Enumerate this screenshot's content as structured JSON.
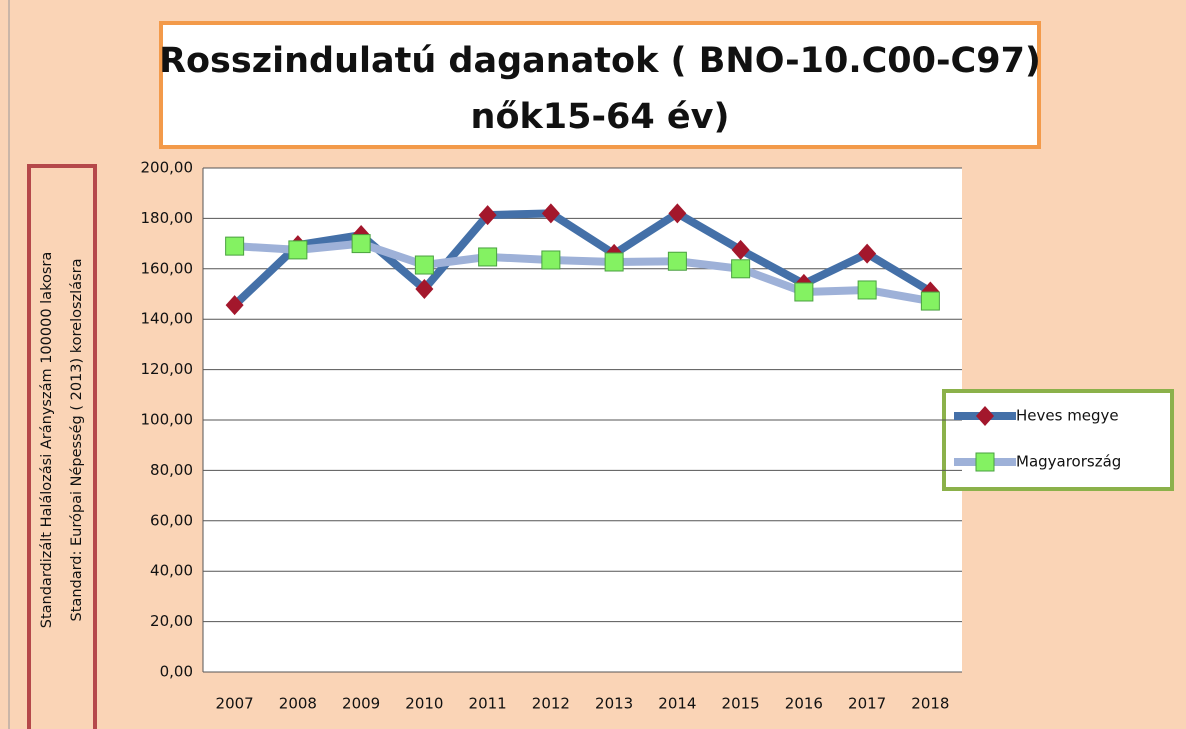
{
  "chart_data": {
    "type": "line",
    "title": [
      "Rosszindulatú daganatok ( BNO-10.C00-C97)",
      "nők15-64 év)"
    ],
    "ylabel": [
      "Standardizált Halálozási Arányszám 100000 lakosra",
      "Standard: Európai Népesség ( 2013) koreloszlásra"
    ],
    "categories": [
      "2007",
      "2008",
      "2009",
      "2010",
      "2011",
      "2012",
      "2013",
      "2014",
      "2015",
      "2016",
      "2017",
      "2018"
    ],
    "series": [
      {
        "name": "Heves megye",
        "color": "#4470a8",
        "marker_color": "#a3172c",
        "marker": "diamond",
        "values": [
          145.6,
          169.4,
          173.4,
          152.0,
          181.3,
          182.0,
          165.9,
          182.0,
          167.5,
          154.0,
          166.0,
          151.0
        ]
      },
      {
        "name": "Magyarország",
        "color": "#9eb1d8",
        "marker_color": "#84f262",
        "marker": "square",
        "values": [
          169.0,
          167.5,
          170.0,
          161.5,
          164.7,
          163.5,
          162.7,
          163.0,
          160.0,
          150.8,
          151.6,
          147.2
        ]
      }
    ],
    "ylim": [
      0,
      200
    ],
    "yticks": [
      {
        "value": 0,
        "label": "0,00"
      },
      {
        "value": 20,
        "label": "20,00"
      },
      {
        "value": 40,
        "label": "40,00"
      },
      {
        "value": 60,
        "label": "60,00"
      },
      {
        "value": 80,
        "label": "80,00"
      },
      {
        "value": 100,
        "label": "100,00"
      },
      {
        "value": 120,
        "label": "120,00"
      },
      {
        "value": 140,
        "label": "140,00"
      },
      {
        "value": 160,
        "label": "160,00"
      },
      {
        "value": 180,
        "label": "180,00"
      },
      {
        "value": 200,
        "label": "200,00"
      }
    ],
    "grid": true,
    "legend": "right"
  }
}
